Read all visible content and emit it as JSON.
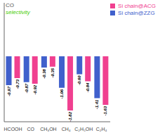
{
  "chart_data": {
    "type": "bar",
    "categories": [
      "HCOOH",
      "CO",
      "CH₃OH",
      "CH₄",
      "C₂H₅OH",
      "C₂H₄"
    ],
    "series": [
      {
        "name": "Si chain@ZZG",
        "color": "#4060cc",
        "values": [
          -0.97,
          -0.87,
          -0.38,
          -1.06,
          -0.6,
          -1.41
        ],
        "value_labels": [
          "-0.97",
          "-0.87",
          "-0.38",
          "-1.06",
          "-0.60",
          "-1.41"
        ]
      },
      {
        "name": "Si chain@ACG",
        "color": "#f04090",
        "values": [
          -0.73,
          -0.92,
          -0.35,
          -1.82,
          -0.84,
          -1.63
        ],
        "value_labels": [
          "-0.73",
          "-0.92",
          "-0.35",
          "-1.82",
          "-0.84",
          "-1.63"
        ]
      }
    ],
    "ylim": [
      -2.2,
      1.8
    ],
    "grid": false,
    "legend": "upper right",
    "data_labels": true,
    "tick_labels": "x",
    "annotations": [
      {
        "text": "CO",
        "color": "#555555"
      },
      {
        "text": "selectivity",
        "color": "#44cc00"
      }
    ]
  }
}
